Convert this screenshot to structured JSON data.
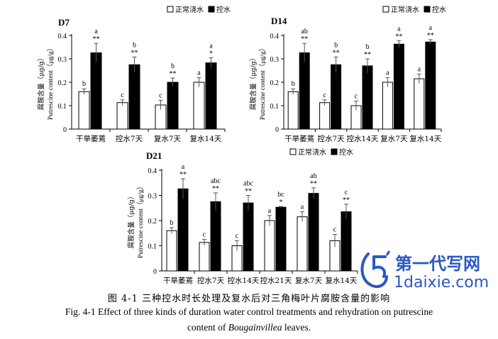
{
  "chart_data": [
    {
      "type": "bar",
      "title": "D7",
      "categories": [
        "干旱萎蔫",
        "控水7天",
        "复水7天",
        "复水14天"
      ],
      "series": [
        {
          "name": "正常浇水",
          "values": [
            0.16,
            0.113,
            0.103,
            0.2
          ],
          "errors": [
            0.012,
            0.012,
            0.02,
            0.02
          ],
          "color": "#ffffff",
          "letters": [
            "b",
            "c",
            "c",
            "a"
          ],
          "stars": [
            "",
            "",
            "",
            ""
          ]
        },
        {
          "name": "控水",
          "values": [
            0.326,
            0.275,
            0.2,
            0.283
          ],
          "errors": [
            0.04,
            0.033,
            0.018,
            0.022
          ],
          "color": "#000000",
          "letters": [
            "a",
            "b",
            "b",
            "a"
          ],
          "stars": [
            "**",
            "**",
            "**",
            "*"
          ]
        }
      ],
      "ylabel_cn": "腐胺含量（μg/g）",
      "ylabel_en": "Putrescine content（μg/g）",
      "yticks": [
        "0",
        "0.1",
        "0.2",
        "0.3",
        "0.4"
      ],
      "ylim": [
        0,
        0.4
      ],
      "legend": "top-right"
    },
    {
      "type": "bar",
      "title": "D14",
      "categories": [
        "干旱萎蔫",
        "控水7天",
        "控水14天",
        "复水7天",
        "复水14天"
      ],
      "series": [
        {
          "name": "正常浇水",
          "values": [
            0.16,
            0.113,
            0.1,
            0.2,
            0.215
          ],
          "errors": [
            0.012,
            0.012,
            0.02,
            0.02,
            0.02
          ],
          "color": "#ffffff",
          "letters": [
            "b",
            "c",
            "c",
            "a",
            "a"
          ],
          "stars": [
            "",
            "",
            "",
            "",
            ""
          ]
        },
        {
          "name": "控水",
          "values": [
            0.326,
            0.275,
            0.27,
            0.363,
            0.372
          ],
          "errors": [
            0.04,
            0.033,
            0.03,
            0.015,
            0.01
          ],
          "color": "#000000",
          "letters": [
            "ab",
            "b",
            "b",
            "a",
            "a"
          ],
          "stars": [
            "**",
            "**",
            "**",
            "**",
            "**"
          ]
        }
      ],
      "ylabel_cn": "腐胺含量（μg/g）",
      "ylabel_en": "Putrescine content（μg/g）",
      "yticks": [
        "0",
        "0.1",
        "0.2",
        "0.3",
        "0.4"
      ],
      "ylim": [
        0,
        0.4
      ],
      "legend": "top-right"
    },
    {
      "type": "bar",
      "title": "D21",
      "categories": [
        "干旱萎蔫",
        "控水7天",
        "控水14天",
        "控水21天",
        "复水7天",
        "复水14天"
      ],
      "series": [
        {
          "name": "正常浇水",
          "values": [
            0.16,
            0.113,
            0.1,
            0.2,
            0.215,
            0.12
          ],
          "errors": [
            0.012,
            0.012,
            0.02,
            0.02,
            0.02,
            0.025
          ],
          "color": "#ffffff",
          "letters": [
            "b",
            "c",
            "c",
            "a",
            "a",
            "c"
          ],
          "stars": [
            "",
            "",
            "",
            "",
            "",
            ""
          ]
        },
        {
          "name": "控水",
          "values": [
            0.326,
            0.275,
            0.27,
            0.253,
            0.308,
            0.235
          ],
          "errors": [
            0.04,
            0.035,
            0.03,
            0.003,
            0.022,
            0.03
          ],
          "color": "#000000",
          "letters": [
            "a",
            "abc",
            "abc",
            "bc",
            "ab",
            "c"
          ],
          "stars": [
            "**",
            "**",
            "**",
            "*",
            "**",
            "**"
          ]
        }
      ],
      "ylabel_cn": "腐胺含量（μg/g）",
      "ylabel_en": "Putrescine content（μg/g）",
      "yticks": [
        "0",
        "0.1",
        "0.2",
        "0.3",
        "0.4"
      ],
      "ylim": [
        0,
        0.4
      ],
      "legend": "top-right"
    }
  ],
  "caption": {
    "zh": "图 4-1  三种控水时长处理及复水后对三角梅叶片腐胺含量的影响",
    "en_line1": "Fig. 4-1 Effect of three kinds of duration water control treatments and rehydration on putrescine",
    "en_line2_prefix": "content of ",
    "en_line2_italic": "Bougainvillea",
    "en_line2_suffix": " leaves."
  },
  "watermark": {
    "logo_text": "第一代写网",
    "url_text": "1daixie.com",
    "color": "#2a57c4"
  }
}
